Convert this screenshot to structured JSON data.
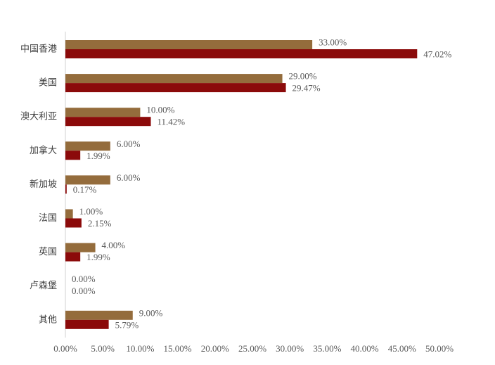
{
  "chart_data": {
    "type": "bar",
    "orientation": "horizontal",
    "categories": [
      "中国香港",
      "美国",
      "澳大利亚",
      "加拿大",
      "新加坡",
      "法国",
      "英国",
      "卢森堡",
      "其他"
    ],
    "series": [
      {
        "color": "#946c3c",
        "values": [
          33,
          29,
          10,
          6,
          6,
          1,
          4,
          0,
          9
        ],
        "value_labels": [
          "33.00%",
          "29.00%",
          "10.00%",
          "6.00%",
          "6.00%",
          "1.00%",
          "4.00%",
          "0.00%",
          "9.00%"
        ]
      },
      {
        "color": "#8b0a0a",
        "values": [
          47.02,
          29.47,
          11.42,
          1.99,
          0.17,
          2.15,
          1.99,
          0,
          5.79
        ],
        "value_labels": [
          "47.02%",
          "29.47%",
          "11.42%",
          "1.99%",
          "0.17%",
          "2.15%",
          "1.99%",
          "0.00%",
          "5.79%"
        ]
      }
    ],
    "xlim": [
      0,
      50
    ],
    "xticks": [
      {
        "value": 0,
        "label": "0.00%"
      },
      {
        "value": 5,
        "label": "5.00%"
      },
      {
        "value": 10,
        "label": "10.00%"
      },
      {
        "value": 15,
        "label": "15.00%"
      },
      {
        "value": 20,
        "label": "20.00%"
      },
      {
        "value": 25,
        "label": "25.00%"
      },
      {
        "value": 30,
        "label": "30.00%"
      },
      {
        "value": 35,
        "label": "35.00%"
      },
      {
        "value": 40,
        "label": "40.00%"
      },
      {
        "value": 45,
        "label": "45.00%"
      },
      {
        "value": 50,
        "label": "50.00%"
      }
    ],
    "grid": false
  }
}
